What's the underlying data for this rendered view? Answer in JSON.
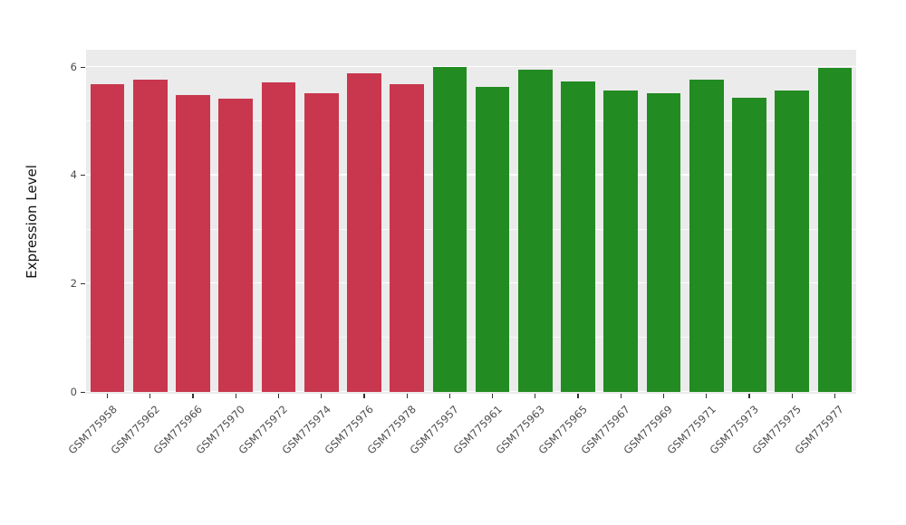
{
  "chart_data": {
    "type": "bar",
    "title": "",
    "xlabel": "",
    "ylabel": "Expression Level",
    "ylim": [
      0,
      6.32
    ],
    "yticks_major": [
      0,
      2,
      4,
      6
    ],
    "yticks_minor": [
      1,
      3,
      5
    ],
    "grid": "on",
    "legend": "none",
    "categories": [
      "GSM775958",
      "GSM775962",
      "GSM775966",
      "GSM775970",
      "GSM775972",
      "GSM775974",
      "GSM775976",
      "GSM775978",
      "GSM775957",
      "GSM775961",
      "GSM775963",
      "GSM775965",
      "GSM775967",
      "GSM775969",
      "GSM775971",
      "GSM775973",
      "GSM775975",
      "GSM775977"
    ],
    "values": [
      5.69,
      5.77,
      5.49,
      5.42,
      5.72,
      5.52,
      5.89,
      5.69,
      6.0,
      5.64,
      5.95,
      5.74,
      5.57,
      5.52,
      5.77,
      5.43,
      5.57,
      5.99
    ],
    "bar_colors": [
      "#C8374E",
      "#C8374E",
      "#C8374E",
      "#C8374E",
      "#C8374E",
      "#C8374E",
      "#C8374E",
      "#C8374E",
      "#228B22",
      "#228B22",
      "#228B22",
      "#228B22",
      "#228B22",
      "#228B22",
      "#228B22",
      "#228B22",
      "#228B22",
      "#228B22"
    ],
    "group_colors": {
      "left_group": "#C8374E",
      "right_group": "#228B22"
    },
    "panel_background": "#EBEBEB",
    "gridline_color": "#FFFFFF",
    "axis_text_color": "#4D4D4D",
    "axis_title_color": "#111111"
  }
}
